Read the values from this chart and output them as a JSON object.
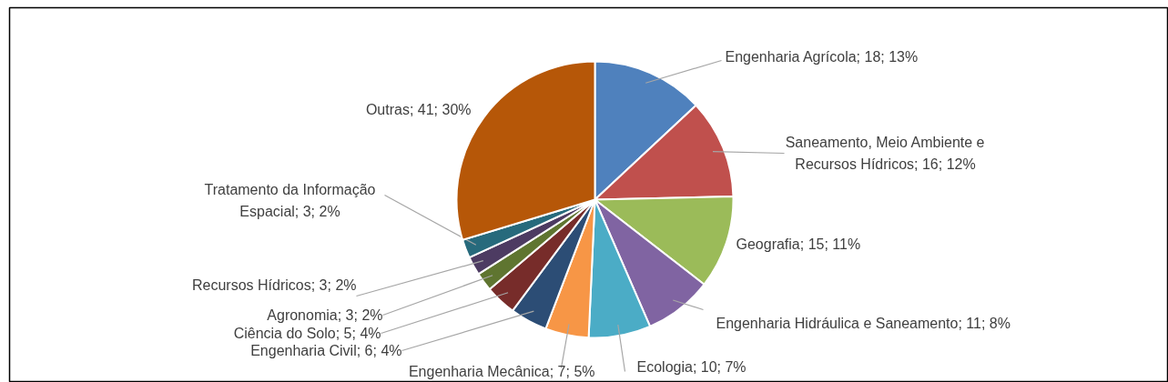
{
  "chart_data": {
    "type": "pie",
    "categories": [
      "Engenharia Agrícola",
      "Saneamento, Meio Ambiente e Recursos Hídricos",
      "Geografia",
      "Engenharia Hidráulica e Saneamento",
      "Ecologia",
      "Engenharia Mecânica",
      "Engenharia Civil",
      "Ciência do Solo",
      "Agronomia",
      "Recursos Hídricos",
      "Tratamento da Informação Espacial",
      "Outras"
    ],
    "values": [
      18,
      16,
      15,
      11,
      10,
      7,
      6,
      5,
      3,
      3,
      3,
      41
    ],
    "colors": [
      "#4f81bd",
      "#c0504d",
      "#9bbb59",
      "#8064a2",
      "#4bacc6",
      "#f79646",
      "#2c4d75",
      "#772c2a",
      "#5f7530",
      "#4d3b62",
      "#276a7c",
      "#b65708"
    ],
    "value_labels": [
      "18; 13%",
      "16; 12%",
      "15; 11%",
      "11; 8%",
      "10; 7%",
      "7; 5%",
      "6; 4%",
      "5; 4%",
      "3; 2%",
      "3; 2%",
      "3; 2%",
      "41; 30%"
    ]
  }
}
